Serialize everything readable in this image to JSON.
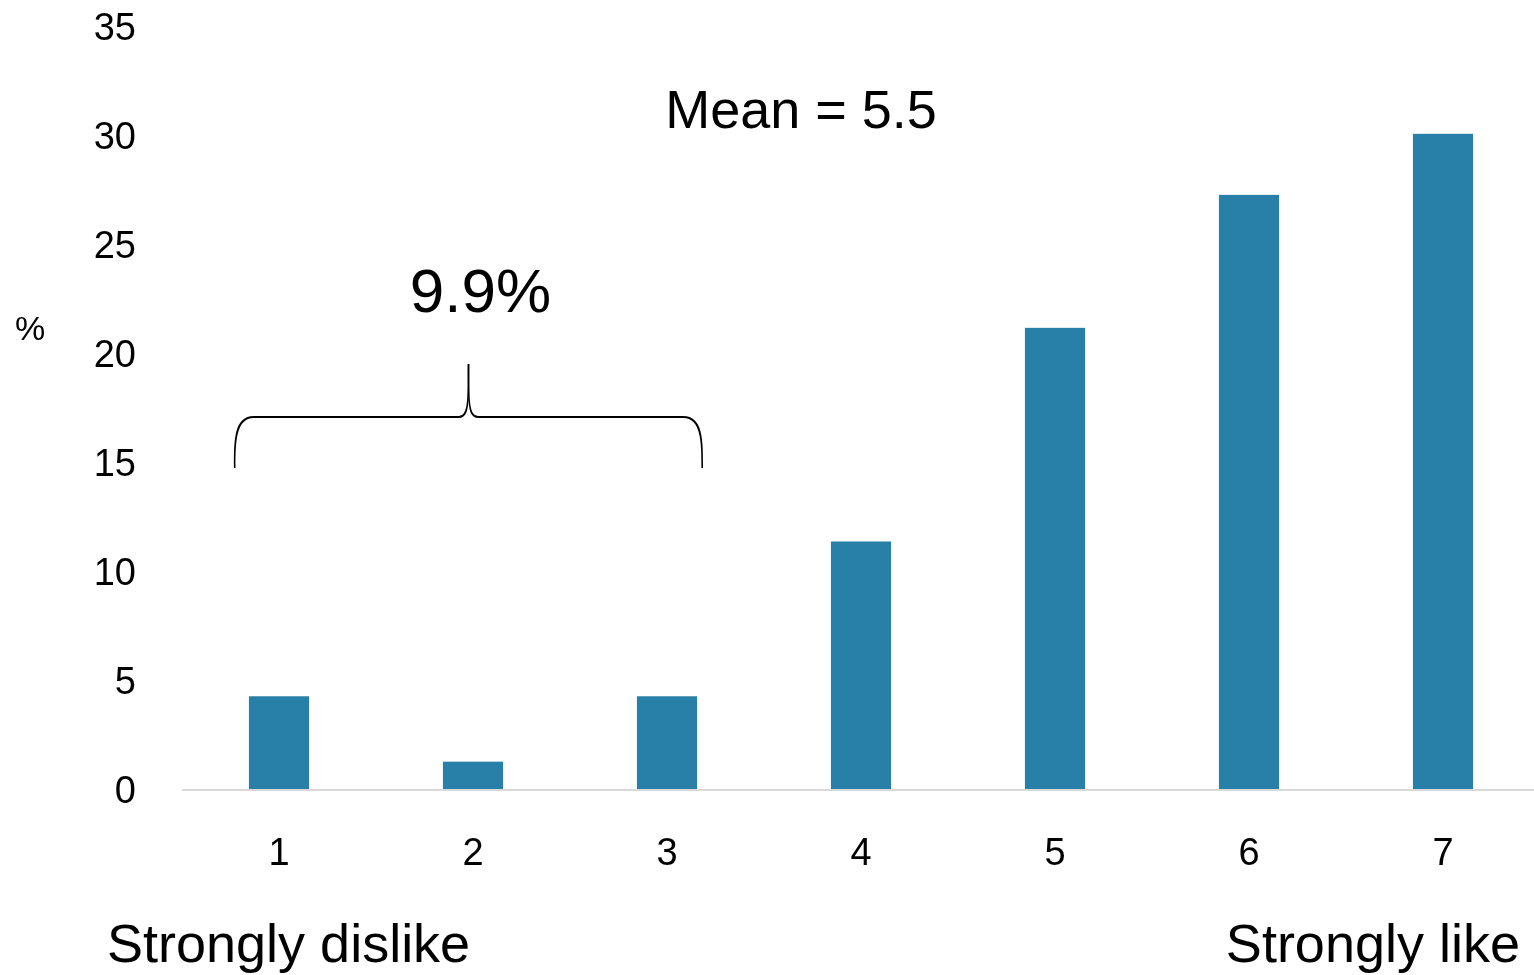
{
  "chart_data": {
    "type": "bar",
    "ylabel": "%",
    "categories": [
      "1",
      "2",
      "3",
      "4",
      "5",
      "6",
      "7"
    ],
    "values": [
      4.3,
      1.3,
      4.3,
      11.4,
      21.2,
      27.3,
      30.1
    ],
    "color": "#2880a8",
    "ylim": [
      0,
      35
    ],
    "yticks": [
      0,
      5,
      10,
      15,
      20,
      25,
      30,
      35
    ],
    "grid": false,
    "annotations": [
      "Mean = 5.5",
      "9.9%",
      "Strongly dislike",
      "Strongly like"
    ]
  }
}
